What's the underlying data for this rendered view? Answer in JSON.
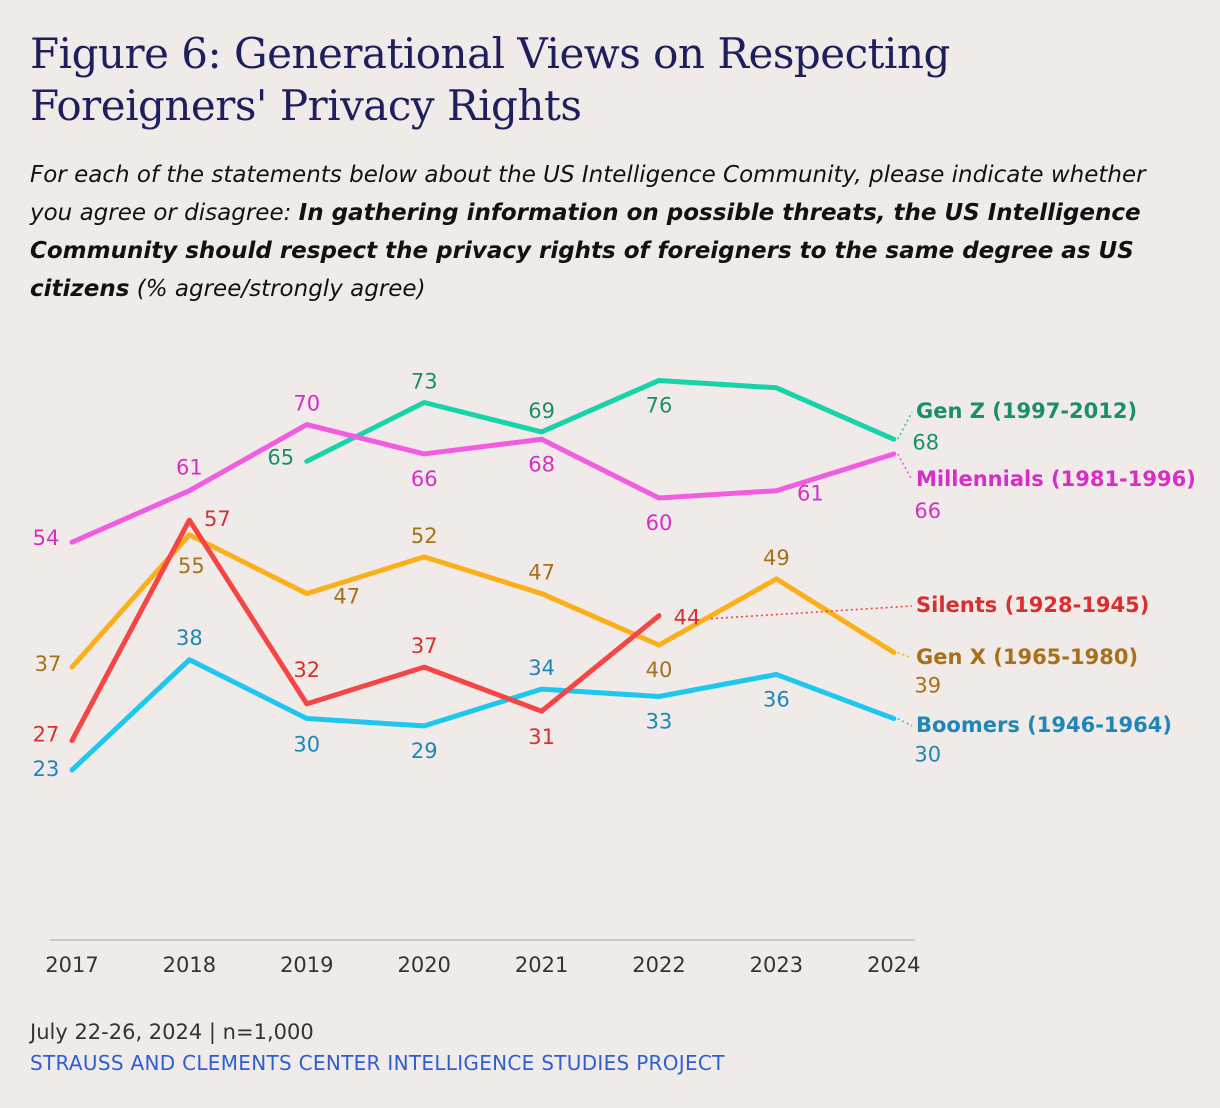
{
  "title": "Figure 6: Generational Views on Respecting  Foreigners' Privacy Rights",
  "subtitle": {
    "lead": "For each of the statements below about the US Intelligence Community, please indicate whether you agree or disagree: ",
    "statement": "In gathering information on possible threats, the US Intelligence Community should respect the privacy rights of foreigners to the same degree as US citizens",
    "unit": " (% agree/strongly agree)"
  },
  "footer": {
    "date_n": "July 22-26, 2024 | n=1,000",
    "source": "STRAUSS AND CLEMENTS CENTER INTELLIGENCE STUDIES PROJECT"
  },
  "chart_data": {
    "type": "line",
    "x": [
      "2017",
      "2018",
      "2019",
      "2020",
      "2021",
      "2022",
      "2023",
      "2024"
    ],
    "ylabel": "% agree/strongly agree",
    "grid": false,
    "series": [
      {
        "name": "Gen Z (1997-2012)",
        "color": "#18d3a8",
        "label_color": "#1a8f6b",
        "values": [
          null,
          null,
          65,
          73,
          69,
          76,
          75,
          68
        ],
        "data_labels": [
          "",
          "",
          "65",
          "73",
          "69",
          "76",
          "",
          "68"
        ]
      },
      {
        "name": "Millennials (1981-1996)",
        "color": "#f25ce0",
        "label_color": "#d62fc8",
        "values": [
          54,
          61,
          70,
          66,
          68,
          60,
          61,
          66
        ],
        "data_labels": [
          "54",
          "61",
          "70",
          "66",
          "68",
          "60",
          "61",
          "66"
        ]
      },
      {
        "name": "Gen X (1965-1980)",
        "color": "#fbaf1b",
        "label_color": "#a8701b",
        "values": [
          37,
          55,
          47,
          52,
          47,
          40,
          49,
          39
        ],
        "data_labels": [
          "37",
          "55",
          "47",
          "52",
          "47",
          "40",
          "49",
          "39"
        ]
      },
      {
        "name": "Boomers (1946-1964)",
        "color": "#1fc6ee",
        "label_color": "#1f86b5",
        "values": [
          23,
          38,
          30,
          29,
          34,
          33,
          36,
          30
        ],
        "data_labels": [
          "23",
          "38",
          "30",
          "29",
          "34",
          "33",
          "36",
          "30"
        ]
      },
      {
        "name": "Silents (1928-1945)",
        "color": "#f54545",
        "label_color": "#d83030",
        "values": [
          27,
          57,
          32,
          37,
          31,
          44,
          null,
          null
        ],
        "data_labels": [
          "27",
          "57",
          "32",
          "37",
          "31",
          "44",
          "",
          ""
        ]
      }
    ]
  }
}
